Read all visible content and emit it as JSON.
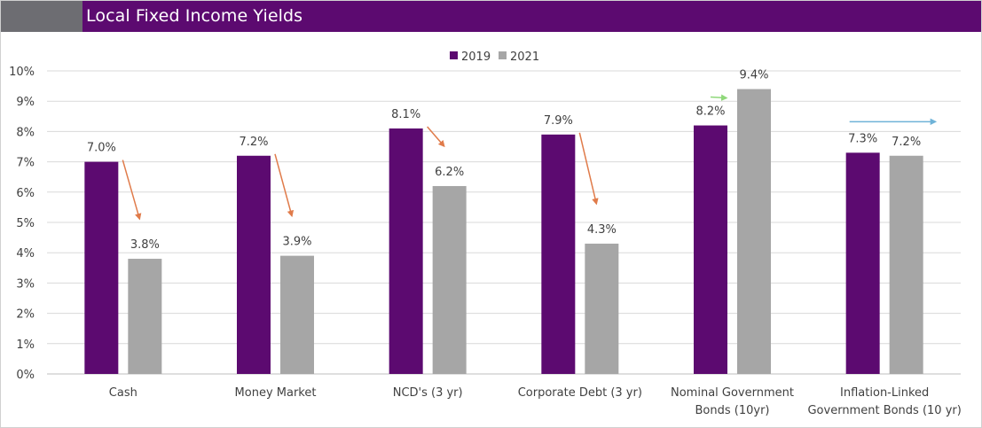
{
  "header": {
    "title": "Local Fixed Income Yields"
  },
  "colors": {
    "header_bg": "#5c0a70",
    "header_swatch": "#6d6d72",
    "series_2019": "#5c0a70",
    "series_2021": "#a6a6a6",
    "arrow_down": "#e07b4a",
    "arrow_up": "#8fd87a",
    "arrow_flat": "#6fb3d8"
  },
  "chart_data": {
    "type": "bar",
    "title": "",
    "xlabel": "",
    "ylabel": "",
    "ylim": [
      0,
      10
    ],
    "y_ticks": [
      "0%",
      "1%",
      "2%",
      "3%",
      "4%",
      "5%",
      "6%",
      "7%",
      "8%",
      "9%",
      "10%"
    ],
    "grid": true,
    "legend_position": "top-center",
    "categories": [
      [
        "Cash"
      ],
      [
        "Money Market"
      ],
      [
        "NCD's (3 yr)"
      ],
      [
        "Corporate Debt (3 yr)"
      ],
      [
        "Nominal Government",
        "Bonds (10yr)"
      ],
      [
        "Inflation-Linked",
        "Government Bonds (10 yr)"
      ]
    ],
    "series": [
      {
        "name": "2019",
        "values": [
          7.0,
          7.2,
          8.1,
          7.9,
          8.2,
          7.3
        ],
        "labels": [
          "7.0%",
          "7.2%",
          "8.1%",
          "7.9%",
          "8.2%",
          "7.3%"
        ]
      },
      {
        "name": "2021",
        "values": [
          3.8,
          3.9,
          6.2,
          4.3,
          9.4,
          7.2
        ],
        "labels": [
          "3.8%",
          "3.9%",
          "6.2%",
          "4.3%",
          "9.4%",
          "7.2%"
        ]
      }
    ],
    "trend_arrows": [
      "down",
      "down",
      "down",
      "down",
      "up",
      "flat"
    ]
  }
}
